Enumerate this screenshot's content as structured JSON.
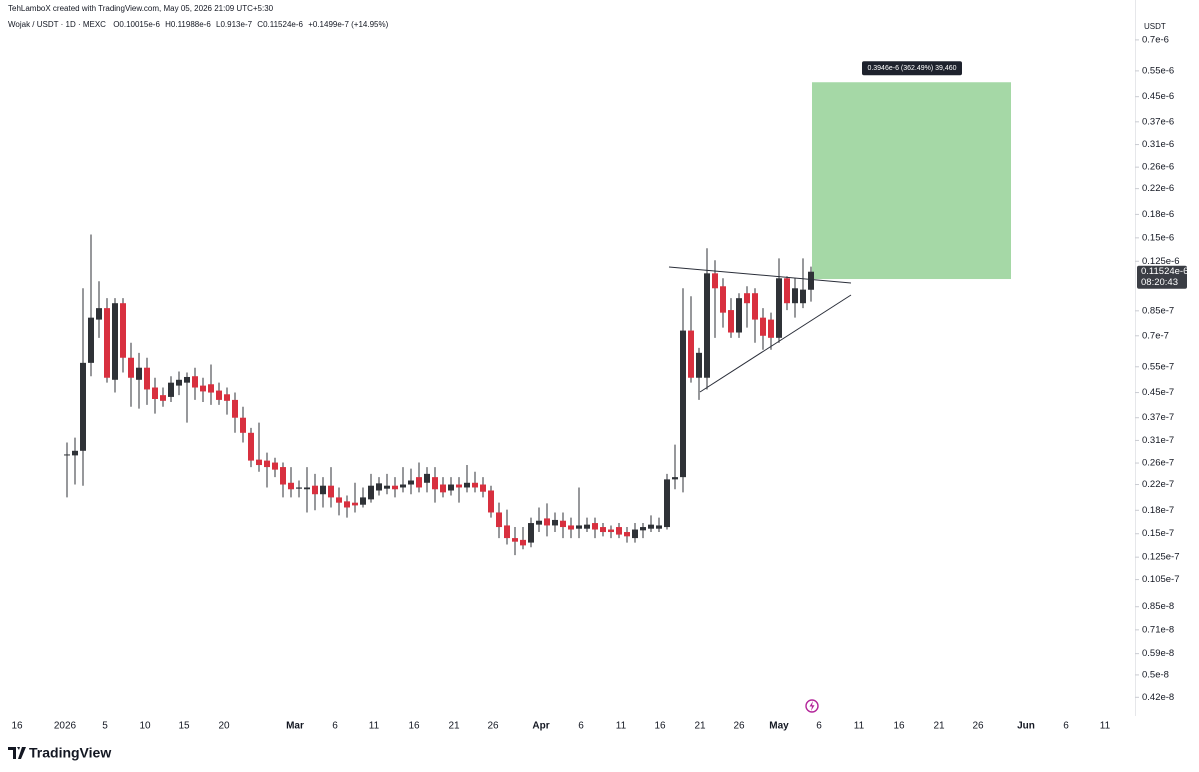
{
  "chart_data": {
    "type": "candlestick",
    "header": "TehLamboX created with TradingView.com, May 05, 2026 21:09 UTC+5:30",
    "legend": {
      "symbol": "Wojak / USDT · 1D · MEXC",
      "open": "O0.10015e-6",
      "high": "H0.11988e-6",
      "low": "L0.913e-7",
      "close": "C0.11524e-6",
      "change": "+0.1499e-7 (+14.95%)"
    },
    "currency": "USDT",
    "brand": "TradingView",
    "log_scale": true,
    "up_color": "#2f3237",
    "down_color": "#d8303f",
    "wick_color": "#2f3237",
    "ylim": [
      3.66e-09,
      8.3e-07
    ],
    "yticks": [
      {
        "value": 7e-07,
        "label": "0.7e-6"
      },
      {
        "value": 5.5e-07,
        "label": "0.55e-6"
      },
      {
        "value": 4.5e-07,
        "label": "0.45e-6"
      },
      {
        "value": 3.7e-07,
        "label": "0.37e-6"
      },
      {
        "value": 3.1e-07,
        "label": "0.31e-6"
      },
      {
        "value": 2.6e-07,
        "label": "0.26e-6"
      },
      {
        "value": 2.2e-07,
        "label": "0.22e-6"
      },
      {
        "value": 1.8e-07,
        "label": "0.18e-6"
      },
      {
        "value": 1.5e-07,
        "label": "0.15e-6"
      },
      {
        "value": 1.25e-07,
        "label": "0.125e-6"
      },
      {
        "value": 8.5e-08,
        "label": "0.85e-7"
      },
      {
        "value": 7e-08,
        "label": "0.7e-7"
      },
      {
        "value": 5.5e-08,
        "label": "0.55e-7"
      },
      {
        "value": 4.5e-08,
        "label": "0.45e-7"
      },
      {
        "value": 3.7e-08,
        "label": "0.37e-7"
      },
      {
        "value": 3.1e-08,
        "label": "0.31e-7"
      },
      {
        "value": 2.6e-08,
        "label": "0.26e-7"
      },
      {
        "value": 2.2e-08,
        "label": "0.22e-7"
      },
      {
        "value": 1.8e-08,
        "label": "0.18e-7"
      },
      {
        "value": 1.5e-08,
        "label": "0.15e-7"
      },
      {
        "value": 1.25e-08,
        "label": "0.125e-7"
      },
      {
        "value": 1.05e-08,
        "label": "0.105e-7"
      },
      {
        "value": 8.5e-09,
        "label": "0.85e-8"
      },
      {
        "value": 7.1e-09,
        "label": "0.71e-8"
      },
      {
        "value": 5.9e-09,
        "label": "0.59e-8"
      },
      {
        "value": 5e-09,
        "label": "0.5e-8"
      },
      {
        "value": 4.2e-09,
        "label": "0.42e-8"
      }
    ],
    "x_labels": [
      "16",
      "2026",
      "5",
      "10",
      "15",
      "20",
      "Mar",
      "6",
      "11",
      "16",
      "21",
      "26",
      "Apr",
      "6",
      "11",
      "16",
      "21",
      "26",
      "May",
      "6",
      "11",
      "16",
      "21",
      "26",
      "Jun",
      "6",
      "11"
    ],
    "open": [
      2.76e-08,
      2.76e-08,
      2.86e-08,
      5.67e-08,
      7.94e-08,
      8.68e-08,
      4.97e-08,
      9.02e-08,
      5.9e-08,
      4.97e-08,
      5.46e-08,
      4.68e-08,
      4.41e-08,
      4.35e-08,
      4.75e-08,
      4.86e-08,
      5.11e-08,
      4.75e-08,
      4.8e-08,
      4.57e-08,
      4.44e-08,
      4.25e-08,
      3.7e-08,
      3.29e-08,
      2.67e-08,
      2.65e-08,
      2.61e-08,
      2.52e-08,
      2.23e-08,
      2.13e-08,
      2.12e-08,
      2.18e-08,
      2.04e-08,
      2.18e-08,
      1.99e-08,
      1.93e-08,
      1.91e-08,
      1.88e-08,
      1.96e-08,
      2.1e-08,
      2.13e-08,
      2.18e-08,
      2.15e-08,
      2.2e-08,
      2.33e-08,
      2.23e-08,
      2.33e-08,
      2.2e-08,
      2.1e-08,
      2.2e-08,
      2.15e-08,
      2.23e-08,
      2.2e-08,
      2.1e-08,
      1.77e-08,
      1.6e-08,
      1.45e-08,
      1.43e-08,
      1.4e-08,
      1.61e-08,
      1.69e-08,
      1.6e-08,
      1.66e-08,
      1.6e-08,
      1.56e-08,
      1.56e-08,
      1.63e-08,
      1.58e-08,
      1.55e-08,
      1.58e-08,
      1.52e-08,
      1.45e-08,
      1.54e-08,
      1.56e-08,
      1.56e-08,
      1.58e-08,
      2.29e-08,
      2.33e-08,
      7.29e-08,
      5.05e-08,
      5.05e-08,
      1.138e-07,
      1.029e-07,
      8.55e-08,
      7.18e-08,
      9.75e-08,
      9.75e-08,
      8.06e-08,
      7.94e-08,
      6.89e-08,
      1.095e-07,
      9.02e-08,
      9.02e-08,
      1.0015e-07
    ],
    "high": [
      3.05e-08,
      3.17e-08,
      1.013e-07,
      1.54e-07,
      1.07e-07,
      9.38e-08,
      9.38e-08,
      9.38e-08,
      6.63e-08,
      6.13e-08,
      5.9e-08,
      5.05e-08,
      4.68e-08,
      5.11e-08,
      5.3e-08,
      5.26e-08,
      5.46e-08,
      5.05e-08,
      5.6e-08,
      4.86e-08,
      4.68e-08,
      4.5e-08,
      4.03e-08,
      3.42e-08,
      3.56e-08,
      2.82e-08,
      2.71e-08,
      2.61e-08,
      2.52e-08,
      2.27e-08,
      2.52e-08,
      2.39e-08,
      2.33e-08,
      2.52e-08,
      2.15e-08,
      2.02e-08,
      2.23e-08,
      2.15e-08,
      2.39e-08,
      2.33e-08,
      2.39e-08,
      2.33e-08,
      2.52e-08,
      2.49e-08,
      2.61e-08,
      2.52e-08,
      2.52e-08,
      2.33e-08,
      2.33e-08,
      2.33e-08,
      2.56e-08,
      2.43e-08,
      2.33e-08,
      2.18e-08,
      1.91e-08,
      1.81e-08,
      1.58e-08,
      1.58e-08,
      1.7e-08,
      1.84e-08,
      1.9e-08,
      1.77e-08,
      1.77e-08,
      1.7e-08,
      2.15e-08,
      1.7e-08,
      1.7e-08,
      1.63e-08,
      1.6e-08,
      1.63e-08,
      1.58e-08,
      1.63e-08,
      1.63e-08,
      1.73e-08,
      1.7e-08,
      2.39e-08,
      3e-08,
      1.013e-07,
      9.52e-08,
      6.37e-08,
      1.383e-07,
      1.26e-07,
      1.095e-07,
      9.38e-08,
      9.75e-08,
      1.029e-07,
      1.013e-07,
      8.68e-08,
      8.38e-08,
      1.279e-07,
      1.112e-07,
      1.095e-07,
      1.279e-07,
      1.1988e-07
    ],
    "low": [
      1.99e-08,
      2.2e-08,
      2.18e-08,
      5.11e-08,
      6.89e-08,
      4.86e-08,
      4.5e-08,
      5.26e-08,
      4.03e-08,
      3.97e-08,
      4.09e-08,
      3.82e-08,
      4.03e-08,
      4.18e-08,
      4.41e-08,
      3.56e-08,
      4.25e-08,
      4.18e-08,
      4.09e-08,
      4.09e-08,
      3.79e-08,
      3.29e-08,
      3.05e-08,
      2.52e-08,
      2.43e-08,
      2.15e-08,
      2.33e-08,
      1.99e-08,
      1.99e-08,
      1.99e-08,
      1.77e-08,
      1.8e-08,
      1.84e-08,
      1.84e-08,
      1.73e-08,
      1.7e-08,
      1.77e-08,
      1.84e-08,
      1.91e-08,
      2.02e-08,
      2.04e-08,
      1.99e-08,
      2.07e-08,
      2.04e-08,
      2.07e-08,
      2.07e-08,
      1.91e-08,
      1.99e-08,
      2.02e-08,
      1.91e-08,
      2.07e-08,
      2.07e-08,
      1.99e-08,
      1.7e-08,
      1.45e-08,
      1.38e-08,
      1.27e-08,
      1.33e-08,
      1.35e-08,
      1.52e-08,
      1.47e-08,
      1.52e-08,
      1.45e-08,
      1.45e-08,
      1.45e-08,
      1.52e-08,
      1.45e-08,
      1.47e-08,
      1.45e-08,
      1.45e-08,
      1.4e-08,
      1.4e-08,
      1.45e-08,
      1.52e-08,
      1.52e-08,
      1.55e-08,
      2.12e-08,
      2.07e-08,
      4.86e-08,
      4.25e-08,
      4.61e-08,
      6.89e-08,
      7.46e-08,
      6.89e-08,
      6.89e-08,
      7.46e-08,
      6.63e-08,
      6.28e-08,
      6.28e-08,
      6.63e-08,
      8.55e-08,
      8.06e-08,
      8.68e-08,
      9.13e-08
    ],
    "close": [
      2.78e-08,
      2.86e-08,
      5.67e-08,
      8.06e-08,
      8.68e-08,
      5.05e-08,
      9.02e-08,
      5.9e-08,
      5.05e-08,
      5.46e-08,
      4.61e-08,
      4.28e-08,
      4.22e-08,
      4.86e-08,
      4.97e-08,
      5.08e-08,
      4.68e-08,
      4.54e-08,
      4.5e-08,
      4.25e-08,
      4.22e-08,
      3.7e-08,
      3.29e-08,
      2.65e-08,
      2.56e-08,
      2.52e-08,
      2.47e-08,
      2.2e-08,
      2.12e-08,
      2.15e-08,
      2.15e-08,
      2.04e-08,
      2.18e-08,
      1.99e-08,
      1.91e-08,
      1.84e-08,
      1.87e-08,
      1.99e-08,
      2.18e-08,
      2.22e-08,
      2.18e-08,
      2.12e-08,
      2.2e-08,
      2.27e-08,
      2.15e-08,
      2.39e-08,
      2.12e-08,
      2.07e-08,
      2.2e-08,
      2.15e-08,
      2.23e-08,
      2.15e-08,
      2.08e-08,
      1.77e-08,
      1.58e-08,
      1.45e-08,
      1.41e-08,
      1.37e-08,
      1.63e-08,
      1.66e-08,
      1.6e-08,
      1.67e-08,
      1.58e-08,
      1.55e-08,
      1.6e-08,
      1.61e-08,
      1.55e-08,
      1.52e-08,
      1.52e-08,
      1.49e-08,
      1.47e-08,
      1.55e-08,
      1.58e-08,
      1.61e-08,
      1.6e-08,
      2.29e-08,
      2.33e-08,
      7.29e-08,
      5.05e-08,
      6.13e-08,
      1.138e-07,
      1.013e-07,
      8.38e-08,
      7.18e-08,
      9.38e-08,
      9.02e-08,
      7.94e-08,
      7e-08,
      6.89e-08,
      1.095e-07,
      9.02e-08,
      1.013e-07,
      1.0025e-07,
      1.1524e-07
    ],
    "last_price": {
      "value": 1.1524e-07,
      "label": "0.11524e-6"
    },
    "countdown": "08:20:43",
    "target": {
      "low": 1.0886e-07,
      "high": 5.0346e-07,
      "color": "#a5d8a6",
      "label": "0.3946e-6 (362.49%) 39,460"
    }
  }
}
